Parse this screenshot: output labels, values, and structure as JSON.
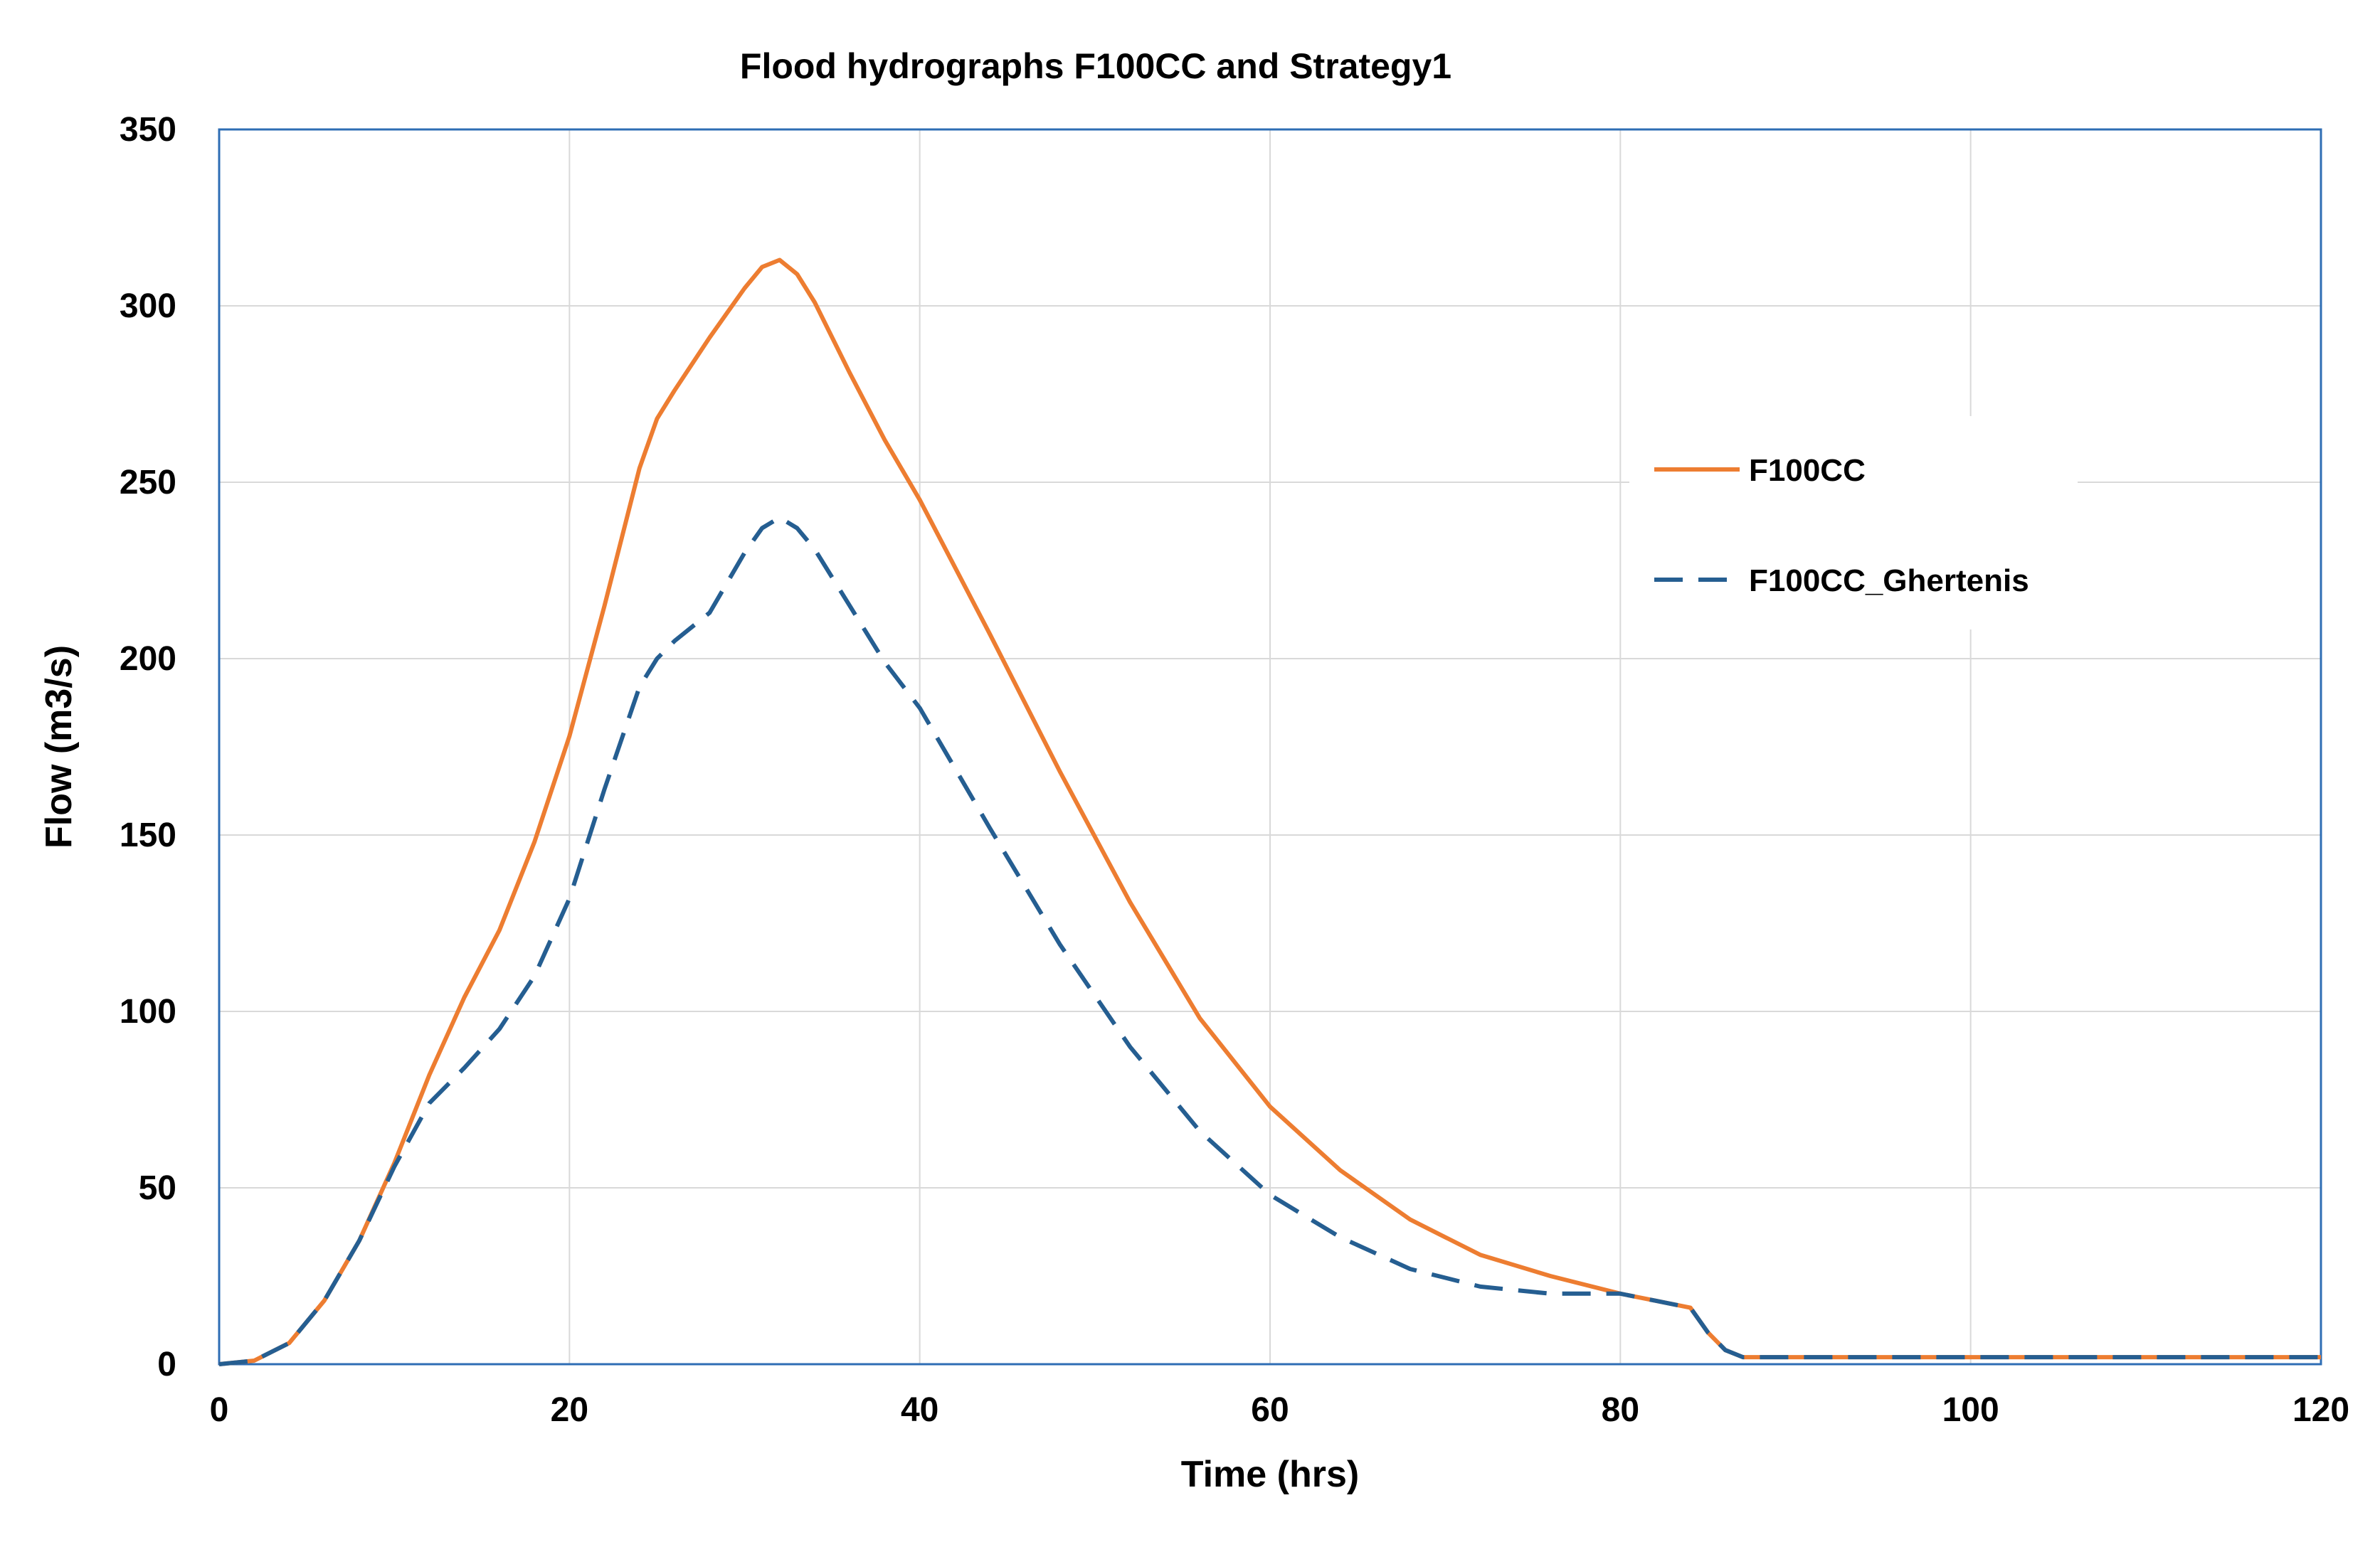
{
  "chart_data": {
    "type": "line",
    "title": "Flood hydrographs F100CC and Strategy1",
    "xlabel": "Time (hrs)",
    "ylabel": "Flow (m3/s)",
    "xlim": [
      0,
      120
    ],
    "ylim": [
      0,
      350
    ],
    "xticks": [
      "0",
      "20",
      "40",
      "60",
      "80",
      "100",
      "120"
    ],
    "yticks": [
      "0",
      "50",
      "100",
      "150",
      "200",
      "250",
      "300",
      "350"
    ],
    "grid": true,
    "legend_position": "right",
    "series": [
      {
        "name": "F100CC",
        "color": "#ED7D31",
        "style": "solid",
        "x": [
          0,
          2,
          4,
          6,
          8,
          10,
          12,
          14,
          16,
          18,
          20,
          22,
          24,
          25,
          26,
          28,
          30,
          31,
          32,
          33,
          34,
          36,
          38,
          40,
          44,
          48,
          52,
          56,
          60,
          64,
          68,
          72,
          76,
          80,
          82,
          84,
          85,
          86,
          87,
          90,
          100,
          110,
          120
        ],
        "y": [
          0,
          1,
          6,
          18,
          35,
          57,
          82,
          104,
          123,
          148,
          178,
          215,
          254,
          268,
          276,
          291,
          305,
          311,
          313,
          309,
          301,
          281,
          262,
          245,
          207,
          168,
          131,
          98,
          73,
          55,
          41,
          31,
          25,
          20,
          18,
          16,
          9,
          4,
          2,
          2,
          2,
          2,
          2
        ]
      },
      {
        "name": "F100CC_Ghertenis",
        "color": "#255E91",
        "style": "dashed",
        "x": [
          0,
          2,
          4,
          6,
          8,
          10,
          12,
          14,
          16,
          18,
          20,
          22,
          24,
          25,
          26,
          28,
          30,
          31,
          32,
          33,
          34,
          36,
          38,
          40,
          44,
          48,
          52,
          56,
          60,
          64,
          68,
          72,
          76,
          78,
          80,
          82,
          84,
          85,
          86,
          87,
          90,
          100,
          110,
          120
        ],
        "y": [
          0,
          1,
          6,
          18,
          35,
          56,
          74,
          84,
          95,
          110,
          132,
          163,
          192,
          200,
          205,
          213,
          230,
          237,
          240,
          237,
          231,
          215,
          199,
          186,
          152,
          119,
          90,
          66,
          48,
          36,
          27,
          22,
          20,
          20,
          20,
          18,
          16,
          9,
          4,
          2,
          2,
          2,
          2,
          2
        ]
      }
    ]
  }
}
